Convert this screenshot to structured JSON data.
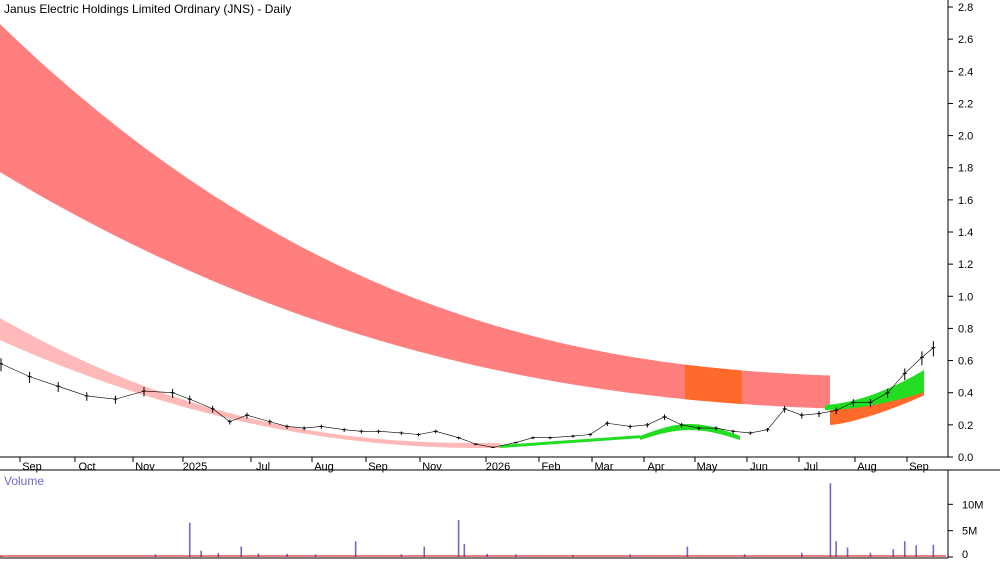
{
  "chart_data": {
    "type": "candlestick",
    "title": "Janus Electric Holdings Limited Ordinary (JNS) - Daily",
    "x_ticks": [
      "Sep",
      "Oct",
      "Nov",
      "2025",
      "Jul",
      "Aug",
      "Sep",
      "Nov",
      "2026",
      "Feb",
      "Mar",
      "Apr",
      "May",
      "Jun",
      "Jul",
      "Aug",
      "Sep"
    ],
    "y_ticks": [
      "2.8",
      "2.6",
      "2.4",
      "2.2",
      "2.0",
      "1.8",
      "1.6",
      "1.4",
      "1.2",
      "1.0",
      "0.8",
      "0.6",
      "0.4",
      "0.2",
      "0.0"
    ],
    "ylim": [
      0,
      2.8
    ],
    "price": [
      [
        0,
        0.58
      ],
      [
        5,
        0.5
      ],
      [
        10,
        0.44
      ],
      [
        15,
        0.38
      ],
      [
        20,
        0.36
      ],
      [
        25,
        0.41
      ],
      [
        30,
        0.4
      ],
      [
        33,
        0.36
      ],
      [
        37,
        0.3
      ],
      [
        40,
        0.22
      ],
      [
        43,
        0.26
      ],
      [
        47,
        0.22
      ],
      [
        50,
        0.19
      ],
      [
        53,
        0.18
      ],
      [
        56,
        0.19
      ],
      [
        60,
        0.17
      ],
      [
        63,
        0.16
      ],
      [
        66,
        0.16
      ],
      [
        70,
        0.15
      ],
      [
        73,
        0.14
      ],
      [
        76,
        0.16
      ],
      [
        80,
        0.12
      ],
      [
        83,
        0.08
      ],
      [
        86,
        0.06
      ],
      [
        90,
        0.09
      ],
      [
        93,
        0.12
      ],
      [
        96,
        0.12
      ],
      [
        100,
        0.13
      ],
      [
        103,
        0.14
      ],
      [
        106,
        0.21
      ],
      [
        110,
        0.19
      ],
      [
        113,
        0.2
      ],
      [
        116,
        0.25
      ],
      [
        119,
        0.2
      ],
      [
        122,
        0.18
      ],
      [
        125,
        0.18
      ],
      [
        128,
        0.16
      ],
      [
        131,
        0.15
      ],
      [
        134,
        0.17
      ],
      [
        137,
        0.3
      ],
      [
        140,
        0.26
      ],
      [
        143,
        0.27
      ],
      [
        146,
        0.29
      ],
      [
        149,
        0.34
      ],
      [
        152,
        0.34
      ],
      [
        155,
        0.4
      ],
      [
        158,
        0.52
      ],
      [
        161,
        0.62
      ],
      [
        163,
        0.68
      ]
    ],
    "volume_ticks": [
      "10M",
      "5M",
      "0"
    ],
    "volume_label": "Volume",
    "volume_max": 15,
    "volume": [
      [
        0,
        0.2
      ],
      [
        27,
        0.5
      ],
      [
        33,
        6.5
      ],
      [
        35,
        1.2
      ],
      [
        38,
        0.8
      ],
      [
        42,
        2.0
      ],
      [
        45,
        0.7
      ],
      [
        50,
        0.6
      ],
      [
        55,
        0.5
      ],
      [
        62,
        3.0
      ],
      [
        70,
        0.5
      ],
      [
        74,
        2.0
      ],
      [
        80,
        7.0
      ],
      [
        81,
        2.5
      ],
      [
        85,
        0.6
      ],
      [
        90,
        0.5
      ],
      [
        100,
        0.4
      ],
      [
        110,
        0.5
      ],
      [
        120,
        2.0
      ],
      [
        130,
        0.5
      ],
      [
        140,
        0.8
      ],
      [
        145,
        14.0
      ],
      [
        146,
        3.0
      ],
      [
        148,
        1.8
      ],
      [
        152,
        0.8
      ],
      [
        156,
        1.5
      ],
      [
        158,
        3.0
      ],
      [
        160,
        2.2
      ],
      [
        163,
        2.3
      ]
    ],
    "colors": {
      "band_long": "#ff7f7f",
      "band_short": "#ffb9b9",
      "band_uptrend": "#22dd22",
      "band_transition": "#ff6a2a",
      "price": "#000000",
      "volume_bar": "#6b6bc8",
      "volume_ma": "#cc0000"
    }
  }
}
